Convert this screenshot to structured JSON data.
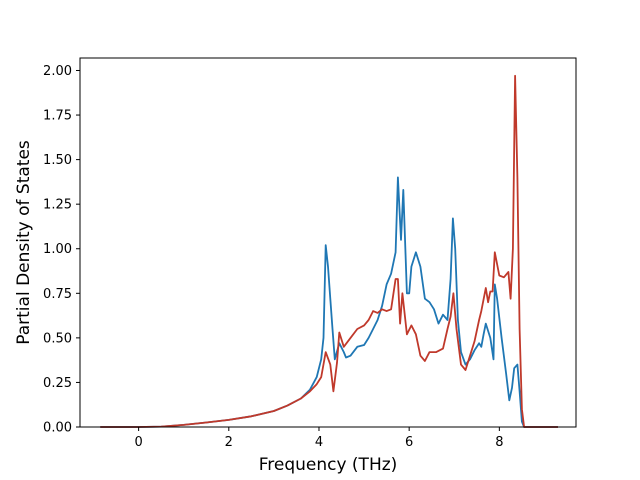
{
  "chart_data": {
    "type": "line",
    "title": "",
    "xlabel": "Frequency (THz)",
    "ylabel": "Partial Density of States",
    "xlim": [
      -1.3,
      9.7
    ],
    "ylim": [
      0.0,
      2.07
    ],
    "xticks": [
      0,
      2,
      4,
      6,
      8
    ],
    "xtick_labels": [
      "0",
      "2",
      "4",
      "6",
      "8"
    ],
    "yticks": [
      0.0,
      0.25,
      0.5,
      0.75,
      1.0,
      1.25,
      1.5,
      1.75,
      2.0
    ],
    "ytick_labels": [
      "0.00",
      "0.25",
      "0.50",
      "0.75",
      "1.00",
      "1.25",
      "1.50",
      "1.75",
      "2.00"
    ],
    "grid": false,
    "legend": "none",
    "series": [
      {
        "color": "#1f77b4",
        "points": [
          [
            -0.85,
            0.0
          ],
          [
            0.0,
            0.0
          ],
          [
            0.5,
            0.002
          ],
          [
            1.0,
            0.012
          ],
          [
            1.5,
            0.025
          ],
          [
            2.0,
            0.04
          ],
          [
            2.5,
            0.06
          ],
          [
            3.0,
            0.09
          ],
          [
            3.3,
            0.12
          ],
          [
            3.6,
            0.16
          ],
          [
            3.8,
            0.21
          ],
          [
            3.95,
            0.28
          ],
          [
            4.05,
            0.38
          ],
          [
            4.1,
            0.5
          ],
          [
            4.15,
            1.02
          ],
          [
            4.2,
            0.9
          ],
          [
            4.25,
            0.72
          ],
          [
            4.3,
            0.55
          ],
          [
            4.35,
            0.38
          ],
          [
            4.45,
            0.47
          ],
          [
            4.55,
            0.42
          ],
          [
            4.6,
            0.39
          ],
          [
            4.7,
            0.4
          ],
          [
            4.85,
            0.45
          ],
          [
            5.0,
            0.46
          ],
          [
            5.1,
            0.5
          ],
          [
            5.2,
            0.55
          ],
          [
            5.3,
            0.6
          ],
          [
            5.4,
            0.68
          ],
          [
            5.5,
            0.8
          ],
          [
            5.6,
            0.86
          ],
          [
            5.7,
            0.98
          ],
          [
            5.75,
            1.4
          ],
          [
            5.82,
            1.05
          ],
          [
            5.87,
            1.33
          ],
          [
            5.95,
            0.75
          ],
          [
            6.0,
            0.75
          ],
          [
            6.05,
            0.9
          ],
          [
            6.15,
            0.98
          ],
          [
            6.25,
            0.9
          ],
          [
            6.35,
            0.72
          ],
          [
            6.45,
            0.7
          ],
          [
            6.55,
            0.66
          ],
          [
            6.65,
            0.58
          ],
          [
            6.75,
            0.63
          ],
          [
            6.85,
            0.6
          ],
          [
            6.92,
            0.83
          ],
          [
            6.97,
            1.17
          ],
          [
            7.02,
            1.0
          ],
          [
            7.08,
            0.6
          ],
          [
            7.15,
            0.42
          ],
          [
            7.25,
            0.35
          ],
          [
            7.35,
            0.38
          ],
          [
            7.45,
            0.43
          ],
          [
            7.55,
            0.47
          ],
          [
            7.6,
            0.45
          ],
          [
            7.65,
            0.52
          ],
          [
            7.7,
            0.58
          ],
          [
            7.8,
            0.5
          ],
          [
            7.87,
            0.38
          ],
          [
            7.9,
            0.8
          ],
          [
            7.95,
            0.72
          ],
          [
            8.05,
            0.5
          ],
          [
            8.15,
            0.3
          ],
          [
            8.22,
            0.15
          ],
          [
            8.28,
            0.22
          ],
          [
            8.33,
            0.33
          ],
          [
            8.4,
            0.35
          ],
          [
            8.45,
            0.2
          ],
          [
            8.5,
            0.03
          ],
          [
            8.55,
            0.0
          ],
          [
            9.3,
            0.0
          ]
        ]
      },
      {
        "color": "#c0392b",
        "points": [
          [
            -0.85,
            0.0
          ],
          [
            0.0,
            0.0
          ],
          [
            0.5,
            0.002
          ],
          [
            1.0,
            0.012
          ],
          [
            1.5,
            0.025
          ],
          [
            2.0,
            0.04
          ],
          [
            2.5,
            0.06
          ],
          [
            3.0,
            0.09
          ],
          [
            3.3,
            0.12
          ],
          [
            3.6,
            0.16
          ],
          [
            3.8,
            0.2
          ],
          [
            3.95,
            0.24
          ],
          [
            4.05,
            0.28
          ],
          [
            4.15,
            0.42
          ],
          [
            4.25,
            0.35
          ],
          [
            4.32,
            0.2
          ],
          [
            4.4,
            0.36
          ],
          [
            4.45,
            0.53
          ],
          [
            4.55,
            0.45
          ],
          [
            4.7,
            0.5
          ],
          [
            4.85,
            0.55
          ],
          [
            5.0,
            0.57
          ],
          [
            5.1,
            0.6
          ],
          [
            5.2,
            0.65
          ],
          [
            5.3,
            0.64
          ],
          [
            5.4,
            0.66
          ],
          [
            5.5,
            0.65
          ],
          [
            5.6,
            0.66
          ],
          [
            5.7,
            0.83
          ],
          [
            5.75,
            0.83
          ],
          [
            5.8,
            0.58
          ],
          [
            5.85,
            0.75
          ],
          [
            5.95,
            0.52
          ],
          [
            6.05,
            0.57
          ],
          [
            6.15,
            0.52
          ],
          [
            6.25,
            0.4
          ],
          [
            6.35,
            0.37
          ],
          [
            6.45,
            0.42
          ],
          [
            6.6,
            0.42
          ],
          [
            6.75,
            0.44
          ],
          [
            6.85,
            0.55
          ],
          [
            6.92,
            0.62
          ],
          [
            6.98,
            0.75
          ],
          [
            7.05,
            0.55
          ],
          [
            7.15,
            0.35
          ],
          [
            7.25,
            0.32
          ],
          [
            7.35,
            0.4
          ],
          [
            7.45,
            0.48
          ],
          [
            7.55,
            0.6
          ],
          [
            7.6,
            0.65
          ],
          [
            7.7,
            0.78
          ],
          [
            7.75,
            0.7
          ],
          [
            7.8,
            0.76
          ],
          [
            7.85,
            0.76
          ],
          [
            7.9,
            0.98
          ],
          [
            8.0,
            0.85
          ],
          [
            8.1,
            0.84
          ],
          [
            8.2,
            0.87
          ],
          [
            8.25,
            0.72
          ],
          [
            8.3,
            1.0
          ],
          [
            8.35,
            1.97
          ],
          [
            8.4,
            1.4
          ],
          [
            8.45,
            0.55
          ],
          [
            8.5,
            0.1
          ],
          [
            8.55,
            0.0
          ],
          [
            9.3,
            0.0
          ]
        ]
      }
    ]
  }
}
